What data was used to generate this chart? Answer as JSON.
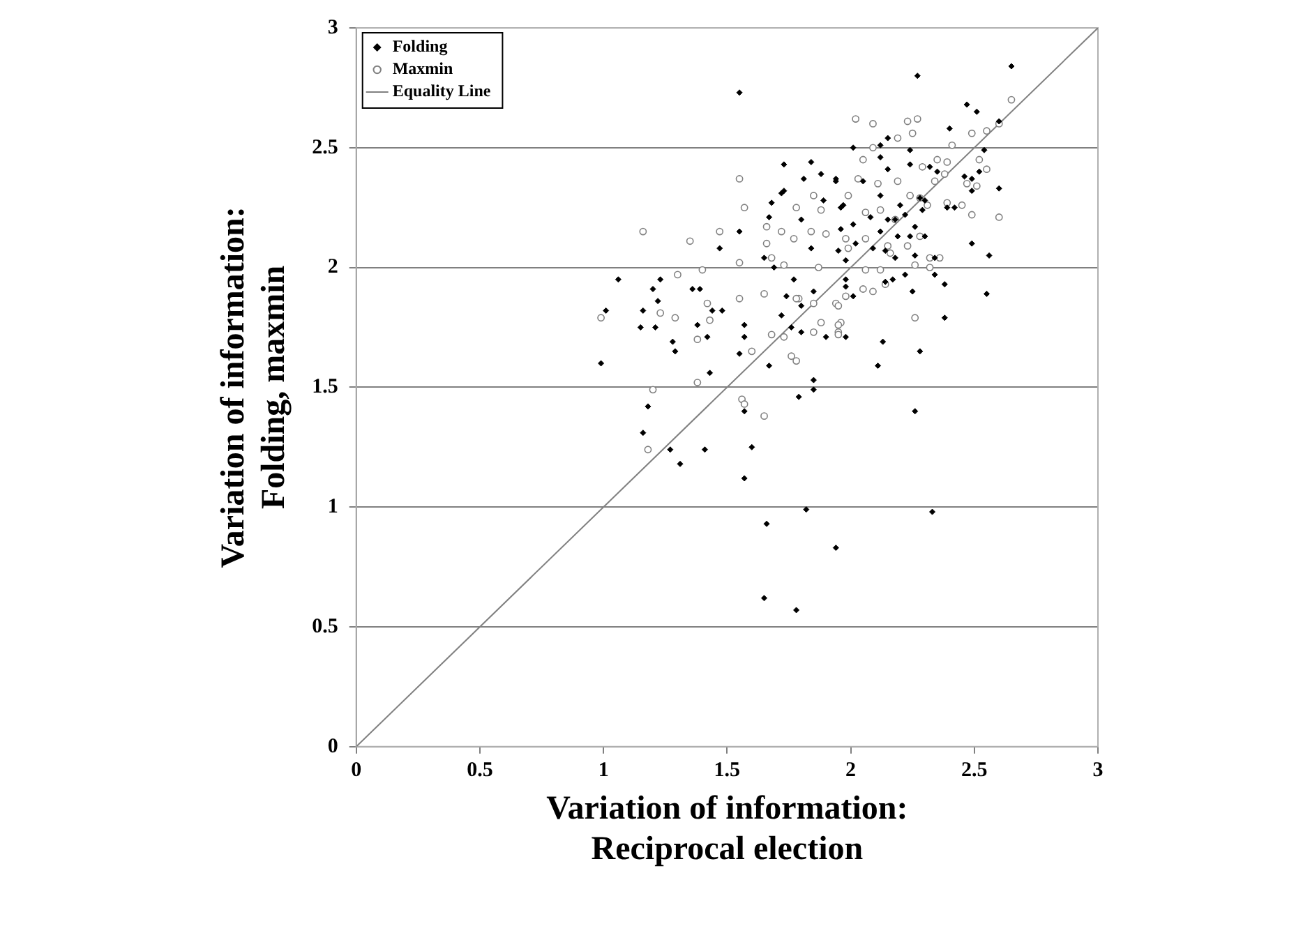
{
  "chart_data": {
    "type": "scatter",
    "xlabel": "Variation of information:\nReciprocal election",
    "ylabel": "Variation of information:\nFolding, maxmin",
    "xlim": [
      0,
      3
    ],
    "ylim": [
      0,
      3
    ],
    "xticks": [
      0,
      0.5,
      1,
      1.5,
      2,
      2.5,
      3
    ],
    "yticks": [
      0,
      0.5,
      1,
      1.5,
      2,
      2.5,
      3
    ],
    "grid": "y",
    "legend": "top left",
    "series": [
      {
        "name": "Folding",
        "color": "#000000",
        "marker": "diamond",
        "x": [
          0.99,
          1.01,
          1.06,
          1.16,
          1.15,
          1.2,
          1.28,
          1.22,
          1.31,
          1.27,
          1.57,
          1.55,
          1.66,
          1.65,
          1.78,
          1.94,
          1.82,
          1.57,
          1.6,
          1.41,
          1.18,
          1.29,
          1.43,
          1.55,
          1.57,
          1.42,
          1.38,
          1.21,
          1.16,
          1.44,
          1.48,
          1.36,
          1.39,
          1.23,
          1.47,
          1.55,
          1.67,
          1.85,
          1.85,
          1.79,
          1.57,
          1.73,
          1.84,
          1.81,
          1.68,
          1.72,
          1.73,
          1.67,
          1.65,
          1.69,
          1.8,
          1.84,
          1.77,
          1.74,
          1.8,
          1.72,
          1.76,
          1.8,
          1.85,
          1.88,
          1.94,
          1.96,
          1.9,
          1.89,
          2.65,
          2.27,
          2.47,
          2.51,
          2.6,
          2.4,
          2.15,
          2.12,
          2.01,
          2.54,
          2.24,
          2.12,
          2.24,
          2.32,
          2.35,
          2.15,
          2.52,
          2.46,
          2.49,
          2.05,
          1.94,
          2.49,
          2.6,
          2.12,
          2.28,
          2.2,
          2.3,
          2.42,
          2.39,
          1.97,
          2.08,
          2.15,
          2.22,
          2.29,
          2.18,
          2.01,
          1.96,
          2.26,
          2.12,
          2.02,
          2.3,
          2.24,
          2.49,
          2.19,
          2.09,
          1.95,
          2.14,
          2.18,
          2.26,
          2.56,
          2.34,
          1.98,
          1.98,
          2.22,
          2.17,
          2.14,
          2.01,
          1.98,
          2.34,
          2.38,
          2.55,
          2.25,
          2.38,
          1.98,
          2.13,
          2.28,
          2.11,
          2.26,
          2.33
        ],
        "values": [
          1.6,
          1.82,
          1.95,
          1.31,
          1.75,
          1.91,
          1.69,
          1.86,
          1.18,
          1.24,
          1.4,
          2.73,
          0.93,
          0.62,
          0.57,
          0.83,
          0.99,
          1.12,
          1.25,
          1.24,
          1.42,
          1.65,
          1.56,
          1.64,
          1.71,
          1.71,
          1.76,
          1.75,
          1.82,
          1.82,
          1.82,
          1.91,
          1.91,
          1.95,
          2.08,
          2.15,
          1.59,
          1.53,
          1.49,
          1.46,
          1.76,
          2.43,
          2.44,
          2.37,
          2.27,
          2.31,
          2.32,
          2.21,
          2.04,
          2.0,
          2.2,
          2.08,
          1.95,
          1.88,
          1.84,
          1.8,
          1.75,
          1.73,
          1.9,
          2.39,
          2.37,
          2.25,
          1.71,
          2.28,
          2.84,
          2.8,
          2.68,
          2.65,
          2.61,
          2.58,
          2.54,
          2.51,
          2.5,
          2.49,
          2.49,
          2.46,
          2.43,
          2.42,
          2.4,
          2.41,
          2.4,
          2.38,
          2.37,
          2.36,
          2.36,
          2.32,
          2.33,
          2.3,
          2.29,
          2.26,
          2.28,
          2.25,
          2.25,
          2.26,
          2.21,
          2.2,
          2.22,
          2.24,
          2.2,
          2.18,
          2.16,
          2.17,
          2.15,
          2.1,
          2.13,
          2.13,
          2.1,
          2.13,
          2.08,
          2.07,
          2.07,
          2.04,
          2.05,
          2.05,
          2.04,
          2.03,
          1.95,
          1.97,
          1.95,
          1.94,
          1.88,
          1.92,
          1.97,
          1.93,
          1.89,
          1.9,
          1.79,
          1.71,
          1.69,
          1.65,
          1.59,
          1.4,
          0.98
        ]
      },
      {
        "name": "Maxmin",
        "color": "#808080",
        "marker": "circle",
        "x": [
          1.55,
          1.57,
          1.16,
          1.35,
          1.47,
          1.3,
          1.4,
          1.55,
          1.55,
          1.42,
          1.23,
          1.29,
          0.99,
          1.43,
          1.38,
          1.6,
          1.38,
          1.2,
          1.56,
          1.57,
          1.65,
          1.18,
          1.65,
          1.68,
          1.73,
          1.76,
          1.78,
          1.73,
          1.79,
          1.85,
          1.88,
          1.95,
          1.66,
          1.72,
          1.78,
          1.85,
          1.88,
          1.84,
          1.9,
          1.87,
          1.85,
          1.94,
          1.96,
          1.78,
          1.77,
          1.68,
          1.66,
          2.02,
          2.09,
          2.23,
          2.27,
          2.25,
          2.19,
          2.09,
          2.65,
          2.55,
          2.6,
          2.41,
          2.49,
          2.05,
          2.35,
          2.39,
          2.52,
          2.55,
          2.29,
          2.03,
          2.19,
          2.38,
          2.47,
          2.51,
          2.34,
          2.6,
          2.49,
          2.45,
          2.39,
          2.31,
          2.28,
          2.24,
          2.11,
          1.99,
          2.06,
          2.18,
          2.12,
          2.28,
          2.23,
          2.15,
          2.06,
          1.98,
          1.99,
          2.16,
          2.32,
          2.26,
          2.32,
          2.12,
          2.06,
          2.14,
          2.09,
          2.05,
          1.98,
          1.95,
          1.95,
          1.95,
          2.26,
          2.36
        ],
        "values": [
          2.37,
          2.25,
          2.15,
          2.11,
          2.15,
          1.97,
          1.99,
          2.02,
          1.87,
          1.85,
          1.81,
          1.79,
          1.79,
          1.78,
          1.7,
          1.65,
          1.52,
          1.49,
          1.45,
          1.43,
          1.38,
          1.24,
          1.89,
          1.72,
          1.71,
          1.63,
          1.61,
          2.01,
          1.87,
          1.73,
          1.77,
          1.73,
          2.17,
          2.15,
          2.25,
          2.3,
          2.24,
          2.15,
          2.14,
          2.0,
          1.85,
          1.85,
          1.77,
          1.87,
          2.12,
          2.04,
          2.1,
          2.62,
          2.6,
          2.61,
          2.62,
          2.56,
          2.54,
          2.5,
          2.7,
          2.57,
          2.6,
          2.51,
          2.56,
          2.45,
          2.45,
          2.44,
          2.45,
          2.41,
          2.42,
          2.37,
          2.36,
          2.39,
          2.35,
          2.34,
          2.36,
          2.21,
          2.22,
          2.26,
          2.27,
          2.26,
          2.29,
          2.3,
          2.35,
          2.3,
          2.23,
          2.2,
          2.24,
          2.13,
          2.09,
          2.09,
          2.12,
          2.12,
          2.08,
          2.06,
          2.04,
          2.01,
          2.0,
          1.99,
          1.99,
          1.93,
          1.9,
          1.91,
          1.88,
          1.84,
          1.76,
          1.72,
          1.79,
          2.04
        ]
      },
      {
        "name": "Equality Line",
        "type": "line",
        "color": "#808080",
        "marker": "none",
        "line_style": "solid",
        "x": [
          0,
          3
        ],
        "values": [
          0,
          3
        ]
      }
    ]
  }
}
